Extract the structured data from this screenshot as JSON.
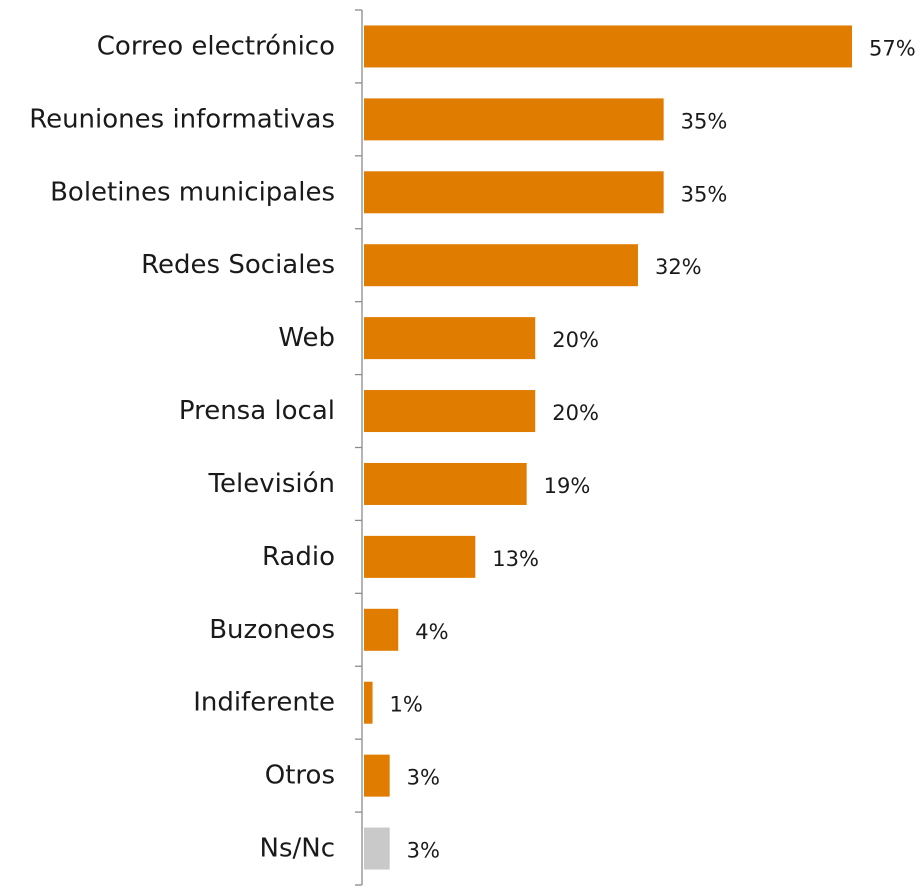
{
  "chart_data": {
    "type": "bar",
    "orientation": "horizontal",
    "title": "",
    "xlabel": "",
    "ylabel": "",
    "xlim": [
      0,
      57
    ],
    "grid": false,
    "legend": "none",
    "categories": [
      "Correo electrónico",
      "Reuniones informativas",
      "Boletines municipales",
      "Redes Sociales",
      "Web",
      "Prensa local",
      "Televisión",
      "Radio",
      "Buzoneos",
      "Indiferente",
      "Otros",
      "Ns/Nc"
    ],
    "values": [
      57,
      35,
      35,
      32,
      20,
      20,
      19,
      13,
      4,
      1,
      3,
      3
    ],
    "value_labels": [
      "57%",
      "35%",
      "35%",
      "32%",
      "20%",
      "20%",
      "19%",
      "13%",
      "4%",
      "1%",
      "3%",
      "3%"
    ],
    "colors": {
      "bar": "#e07c00",
      "bar_last": "#c9c9c9",
      "axis": "#8c8c8c"
    }
  }
}
